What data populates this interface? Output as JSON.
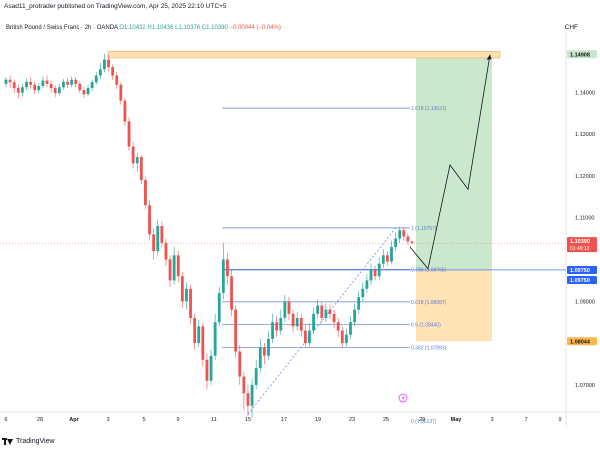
{
  "header": {
    "published_text": "Asad11_protrader published on TradingView.com, Apr 25, 2025 22:10 UTC+5"
  },
  "symbol_bar": {
    "name": "British Pound / Swiss Franc · 2h · OANDA",
    "open": "O1.10432",
    "high": "H1.10436",
    "low": "L1.10376",
    "close": "C1.10390",
    "change": "−0.00044 (−0.04%)",
    "currency": "CHF"
  },
  "footer": {
    "logo_text": "TradingView"
  },
  "colors": {
    "up": "#26a69a",
    "down": "#ef5350",
    "target_zone": "#c8e6c9",
    "stop_zone": "#ffe0b2",
    "resistance_band": "#ffe0b2",
    "fib_line": "#5b7fd6",
    "trend_line": "#5b7fd6",
    "arrow": "#131722"
  },
  "chart_data": {
    "type": "candlestick",
    "instrument": "GBPCHF",
    "timeframe": "2h",
    "currency": "CHF",
    "ylim": [
      1.064,
      1.1525
    ],
    "x_ticks": [
      "6",
      "28",
      "Apr",
      "3",
      "5",
      "9",
      "11",
      "15",
      "17",
      "19",
      "23",
      "25",
      "29",
      "May",
      "3",
      "7",
      "9"
    ],
    "y_ticks": [
      "1.14000",
      "1.13000",
      "1.12000",
      "1.11000",
      "1.09000",
      "1.08000",
      "1.07000"
    ],
    "price_tags": [
      {
        "label": "1.14908",
        "value": 1.14908,
        "color": "#c8e6c9"
      },
      {
        "label": "1.10390",
        "label2": "01:49:13",
        "value": 1.1039,
        "color": "#ef5350"
      },
      {
        "label": "1.09750",
        "value": 1.0975,
        "color": "#2962ff"
      },
      {
        "label": "1.09750",
        "value": 1.0975,
        "color": "#2962ff"
      },
      {
        "label": "1.08044",
        "value": 1.08044,
        "color": "#ffb74d"
      }
    ],
    "fibonacci": [
      {
        "label": "1.618 (1.13621)",
        "value": 1.13621
      },
      {
        "label": "1 (1.10757)",
        "value": 1.10757
      },
      {
        "label": "0.786 (1.09765)",
        "value": 1.09765
      },
      {
        "label": "0.618 (1.08987)",
        "value": 1.08987
      },
      {
        "label": "0.5 (1.08440)",
        "value": 1.0844
      },
      {
        "label": "0.382 (1.07893)",
        "value": 1.07893
      },
      {
        "label": "0 (1.06137)",
        "value": 1.06137
      }
    ],
    "position": {
      "entry": 1.0975,
      "target": 1.14908,
      "stop": 1.08044
    },
    "resistance_band": {
      "top": 1.1498,
      "bottom": 1.1482
    },
    "candles": [
      {
        "o": 1.142,
        "c": 1.143,
        "h": 1.1436,
        "l": 1.1412
      },
      {
        "o": 1.143,
        "c": 1.1424,
        "h": 1.144,
        "l": 1.141
      },
      {
        "o": 1.1424,
        "c": 1.141,
        "h": 1.143,
        "l": 1.1398
      },
      {
        "o": 1.141,
        "c": 1.1399,
        "h": 1.1418,
        "l": 1.1385
      },
      {
        "o": 1.1399,
        "c": 1.1412,
        "h": 1.142,
        "l": 1.139
      },
      {
        "o": 1.1412,
        "c": 1.1425,
        "h": 1.1432,
        "l": 1.1405
      },
      {
        "o": 1.1425,
        "c": 1.1418,
        "h": 1.1435,
        "l": 1.1408
      },
      {
        "o": 1.1418,
        "c": 1.1405,
        "h": 1.1426,
        "l": 1.1396
      },
      {
        "o": 1.1405,
        "c": 1.1415,
        "h": 1.1422,
        "l": 1.1398
      },
      {
        "o": 1.1415,
        "c": 1.1428,
        "h": 1.1437,
        "l": 1.141
      },
      {
        "o": 1.1428,
        "c": 1.142,
        "h": 1.144,
        "l": 1.1412
      },
      {
        "o": 1.142,
        "c": 1.141,
        "h": 1.1428,
        "l": 1.14
      },
      {
        "o": 1.141,
        "c": 1.1398,
        "h": 1.1416,
        "l": 1.1388
      },
      {
        "o": 1.1398,
        "c": 1.1412,
        "h": 1.142,
        "l": 1.1392
      },
      {
        "o": 1.1412,
        "c": 1.1425,
        "h": 1.1432,
        "l": 1.1406
      },
      {
        "o": 1.1425,
        "c": 1.1418,
        "h": 1.1434,
        "l": 1.141
      },
      {
        "o": 1.1418,
        "c": 1.143,
        "h": 1.1438,
        "l": 1.1412
      },
      {
        "o": 1.143,
        "c": 1.142,
        "h": 1.1436,
        "l": 1.1412
      },
      {
        "o": 1.142,
        "c": 1.1405,
        "h": 1.1426,
        "l": 1.1398
      },
      {
        "o": 1.1405,
        "c": 1.1395,
        "h": 1.1412,
        "l": 1.1386
      },
      {
        "o": 1.1395,
        "c": 1.141,
        "h": 1.1418,
        "l": 1.139
      },
      {
        "o": 1.141,
        "c": 1.1424,
        "h": 1.143,
        "l": 1.1404
      },
      {
        "o": 1.1424,
        "c": 1.144,
        "h": 1.1448,
        "l": 1.1418
      },
      {
        "o": 1.144,
        "c": 1.1455,
        "h": 1.147,
        "l": 1.1432
      },
      {
        "o": 1.1455,
        "c": 1.1478,
        "h": 1.1492,
        "l": 1.1448
      },
      {
        "o": 1.1478,
        "c": 1.146,
        "h": 1.149,
        "l": 1.145
      },
      {
        "o": 1.146,
        "c": 1.144,
        "h": 1.1466,
        "l": 1.143
      },
      {
        "o": 1.144,
        "c": 1.1418,
        "h": 1.1448,
        "l": 1.1408
      },
      {
        "o": 1.1418,
        "c": 1.138,
        "h": 1.1424,
        "l": 1.137
      },
      {
        "o": 1.138,
        "c": 1.133,
        "h": 1.1386,
        "l": 1.132
      },
      {
        "o": 1.133,
        "c": 1.127,
        "h": 1.134,
        "l": 1.126
      },
      {
        "o": 1.127,
        "c": 1.123,
        "h": 1.1282,
        "l": 1.1218
      },
      {
        "o": 1.123,
        "c": 1.1245,
        "h": 1.1255,
        "l": 1.121
      },
      {
        "o": 1.1245,
        "c": 1.119,
        "h": 1.125,
        "l": 1.118
      },
      {
        "o": 1.119,
        "c": 1.113,
        "h": 1.1198,
        "l": 1.112
      },
      {
        "o": 1.113,
        "c": 1.106,
        "h": 1.1142,
        "l": 1.1045
      },
      {
        "o": 1.106,
        "c": 1.102,
        "h": 1.1075,
        "l": 1.1
      },
      {
        "o": 1.102,
        "c": 1.108,
        "h": 1.1095,
        "l": 1.101
      },
      {
        "o": 1.108,
        "c": 1.104,
        "h": 1.109,
        "l": 1.103
      },
      {
        "o": 1.104,
        "c": 1.1,
        "h": 1.105,
        "l": 1.0985
      },
      {
        "o": 1.1,
        "c": 1.095,
        "h": 1.101,
        "l": 1.0935
      },
      {
        "o": 1.095,
        "c": 1.101,
        "h": 1.103,
        "l": 1.094
      },
      {
        "o": 1.101,
        "c": 1.096,
        "h": 1.102,
        "l": 1.0945
      },
      {
        "o": 1.096,
        "c": 1.09,
        "h": 1.097,
        "l": 1.0885
      },
      {
        "o": 1.09,
        "c": 1.093,
        "h": 1.0945,
        "l": 1.088
      },
      {
        "o": 1.093,
        "c": 1.086,
        "h": 1.094,
        "l": 1.0845
      },
      {
        "o": 1.086,
        "c": 1.08,
        "h": 1.087,
        "l": 1.0785
      },
      {
        "o": 1.08,
        "c": 1.084,
        "h": 1.0855,
        "l": 1.079
      },
      {
        "o": 1.084,
        "c": 1.076,
        "h": 1.0848,
        "l": 1.0745
      },
      {
        "o": 1.076,
        "c": 1.071,
        "h": 1.0775,
        "l": 1.069
      },
      {
        "o": 1.071,
        "c": 1.077,
        "h": 1.0785,
        "l": 1.07
      },
      {
        "o": 1.077,
        "c": 1.085,
        "h": 1.087,
        "l": 1.076
      },
      {
        "o": 1.085,
        "c": 1.092,
        "h": 1.0935,
        "l": 1.084
      },
      {
        "o": 1.092,
        "c": 1.1,
        "h": 1.104,
        "l": 1.0905
      },
      {
        "o": 1.1,
        "c": 1.096,
        "h": 1.1015,
        "l": 1.094
      },
      {
        "o": 1.096,
        "c": 1.088,
        "h": 1.0975,
        "l": 1.0865
      },
      {
        "o": 1.088,
        "c": 1.078,
        "h": 1.089,
        "l": 1.0765
      },
      {
        "o": 1.078,
        "c": 1.072,
        "h": 1.0795,
        "l": 1.07
      },
      {
        "o": 1.072,
        "c": 1.068,
        "h": 1.073,
        "l": 1.064
      },
      {
        "o": 1.068,
        "c": 1.065,
        "h": 1.07,
        "l": 1.0625
      },
      {
        "o": 1.065,
        "c": 1.07,
        "h": 1.0715,
        "l": 1.062
      },
      {
        "o": 1.07,
        "c": 1.074,
        "h": 1.076,
        "l": 1.069
      },
      {
        "o": 1.074,
        "c": 1.079,
        "h": 1.081,
        "l": 1.073
      },
      {
        "o": 1.079,
        "c": 1.077,
        "h": 1.08,
        "l": 1.075
      },
      {
        "o": 1.077,
        "c": 1.081,
        "h": 1.083,
        "l": 1.076
      },
      {
        "o": 1.081,
        "c": 1.085,
        "h": 1.087,
        "l": 1.08
      },
      {
        "o": 1.085,
        "c": 1.083,
        "h": 1.0865,
        "l": 1.0815
      },
      {
        "o": 1.083,
        "c": 1.086,
        "h": 1.088,
        "l": 1.082
      },
      {
        "o": 1.086,
        "c": 1.09,
        "h": 1.0915,
        "l": 1.085
      },
      {
        "o": 1.09,
        "c": 1.087,
        "h": 1.091,
        "l": 1.0855
      },
      {
        "o": 1.087,
        "c": 1.084,
        "h": 1.088,
        "l": 1.0825
      },
      {
        "o": 1.084,
        "c": 1.086,
        "h": 1.0875,
        "l": 1.083
      },
      {
        "o": 1.086,
        "c": 1.083,
        "h": 1.087,
        "l": 1.0815
      },
      {
        "o": 1.083,
        "c": 1.08,
        "h": 1.0845,
        "l": 1.079
      },
      {
        "o": 1.08,
        "c": 1.083,
        "h": 1.0848,
        "l": 1.0792
      },
      {
        "o": 1.083,
        "c": 1.087,
        "h": 1.0885,
        "l": 1.082
      },
      {
        "o": 1.087,
        "c": 1.089,
        "h": 1.0905,
        "l": 1.086
      },
      {
        "o": 1.089,
        "c": 1.086,
        "h": 1.09,
        "l": 1.085
      },
      {
        "o": 1.086,
        "c": 1.088,
        "h": 1.0895,
        "l": 1.085
      },
      {
        "o": 1.088,
        "c": 1.087,
        "h": 1.0892,
        "l": 1.0858
      },
      {
        "o": 1.087,
        "c": 1.085,
        "h": 1.088,
        "l": 1.0835
      },
      {
        "o": 1.085,
        "c": 1.083,
        "h": 1.086,
        "l": 1.0815
      },
      {
        "o": 1.083,
        "c": 1.08,
        "h": 1.084,
        "l": 1.079
      },
      {
        "o": 1.08,
        "c": 1.082,
        "h": 1.0835,
        "l": 1.0792
      },
      {
        "o": 1.082,
        "c": 1.085,
        "h": 1.0865,
        "l": 1.081
      },
      {
        "o": 1.085,
        "c": 1.088,
        "h": 1.0895,
        "l": 1.084
      },
      {
        "o": 1.088,
        "c": 1.091,
        "h": 1.0925,
        "l": 1.087
      },
      {
        "o": 1.091,
        "c": 1.093,
        "h": 1.0945,
        "l": 1.09
      },
      {
        "o": 1.093,
        "c": 1.095,
        "h": 1.0965,
        "l": 1.092
      },
      {
        "o": 1.095,
        "c": 1.0975,
        "h": 1.099,
        "l": 1.094
      },
      {
        "o": 1.0975,
        "c": 1.096,
        "h": 1.0985,
        "l": 1.095
      },
      {
        "o": 1.096,
        "c": 1.099,
        "h": 1.1005,
        "l": 1.0952
      },
      {
        "o": 1.099,
        "c": 1.101,
        "h": 1.1025,
        "l": 1.098
      },
      {
        "o": 1.101,
        "c": 1.0995,
        "h": 1.102,
        "l": 1.0985
      },
      {
        "o": 1.0995,
        "c": 1.103,
        "h": 1.1045,
        "l": 1.099
      },
      {
        "o": 1.103,
        "c": 1.105,
        "h": 1.1065,
        "l": 1.102
      },
      {
        "o": 1.105,
        "c": 1.107,
        "h": 1.1078,
        "l": 1.104
      },
      {
        "o": 1.107,
        "c": 1.1055,
        "h": 1.1078,
        "l": 1.1045
      },
      {
        "o": 1.1055,
        "c": 1.1043,
        "h": 1.1062,
        "l": 1.1035
      },
      {
        "o": 1.1043,
        "c": 1.1039,
        "h": 1.1044,
        "l": 1.1038
      }
    ]
  }
}
